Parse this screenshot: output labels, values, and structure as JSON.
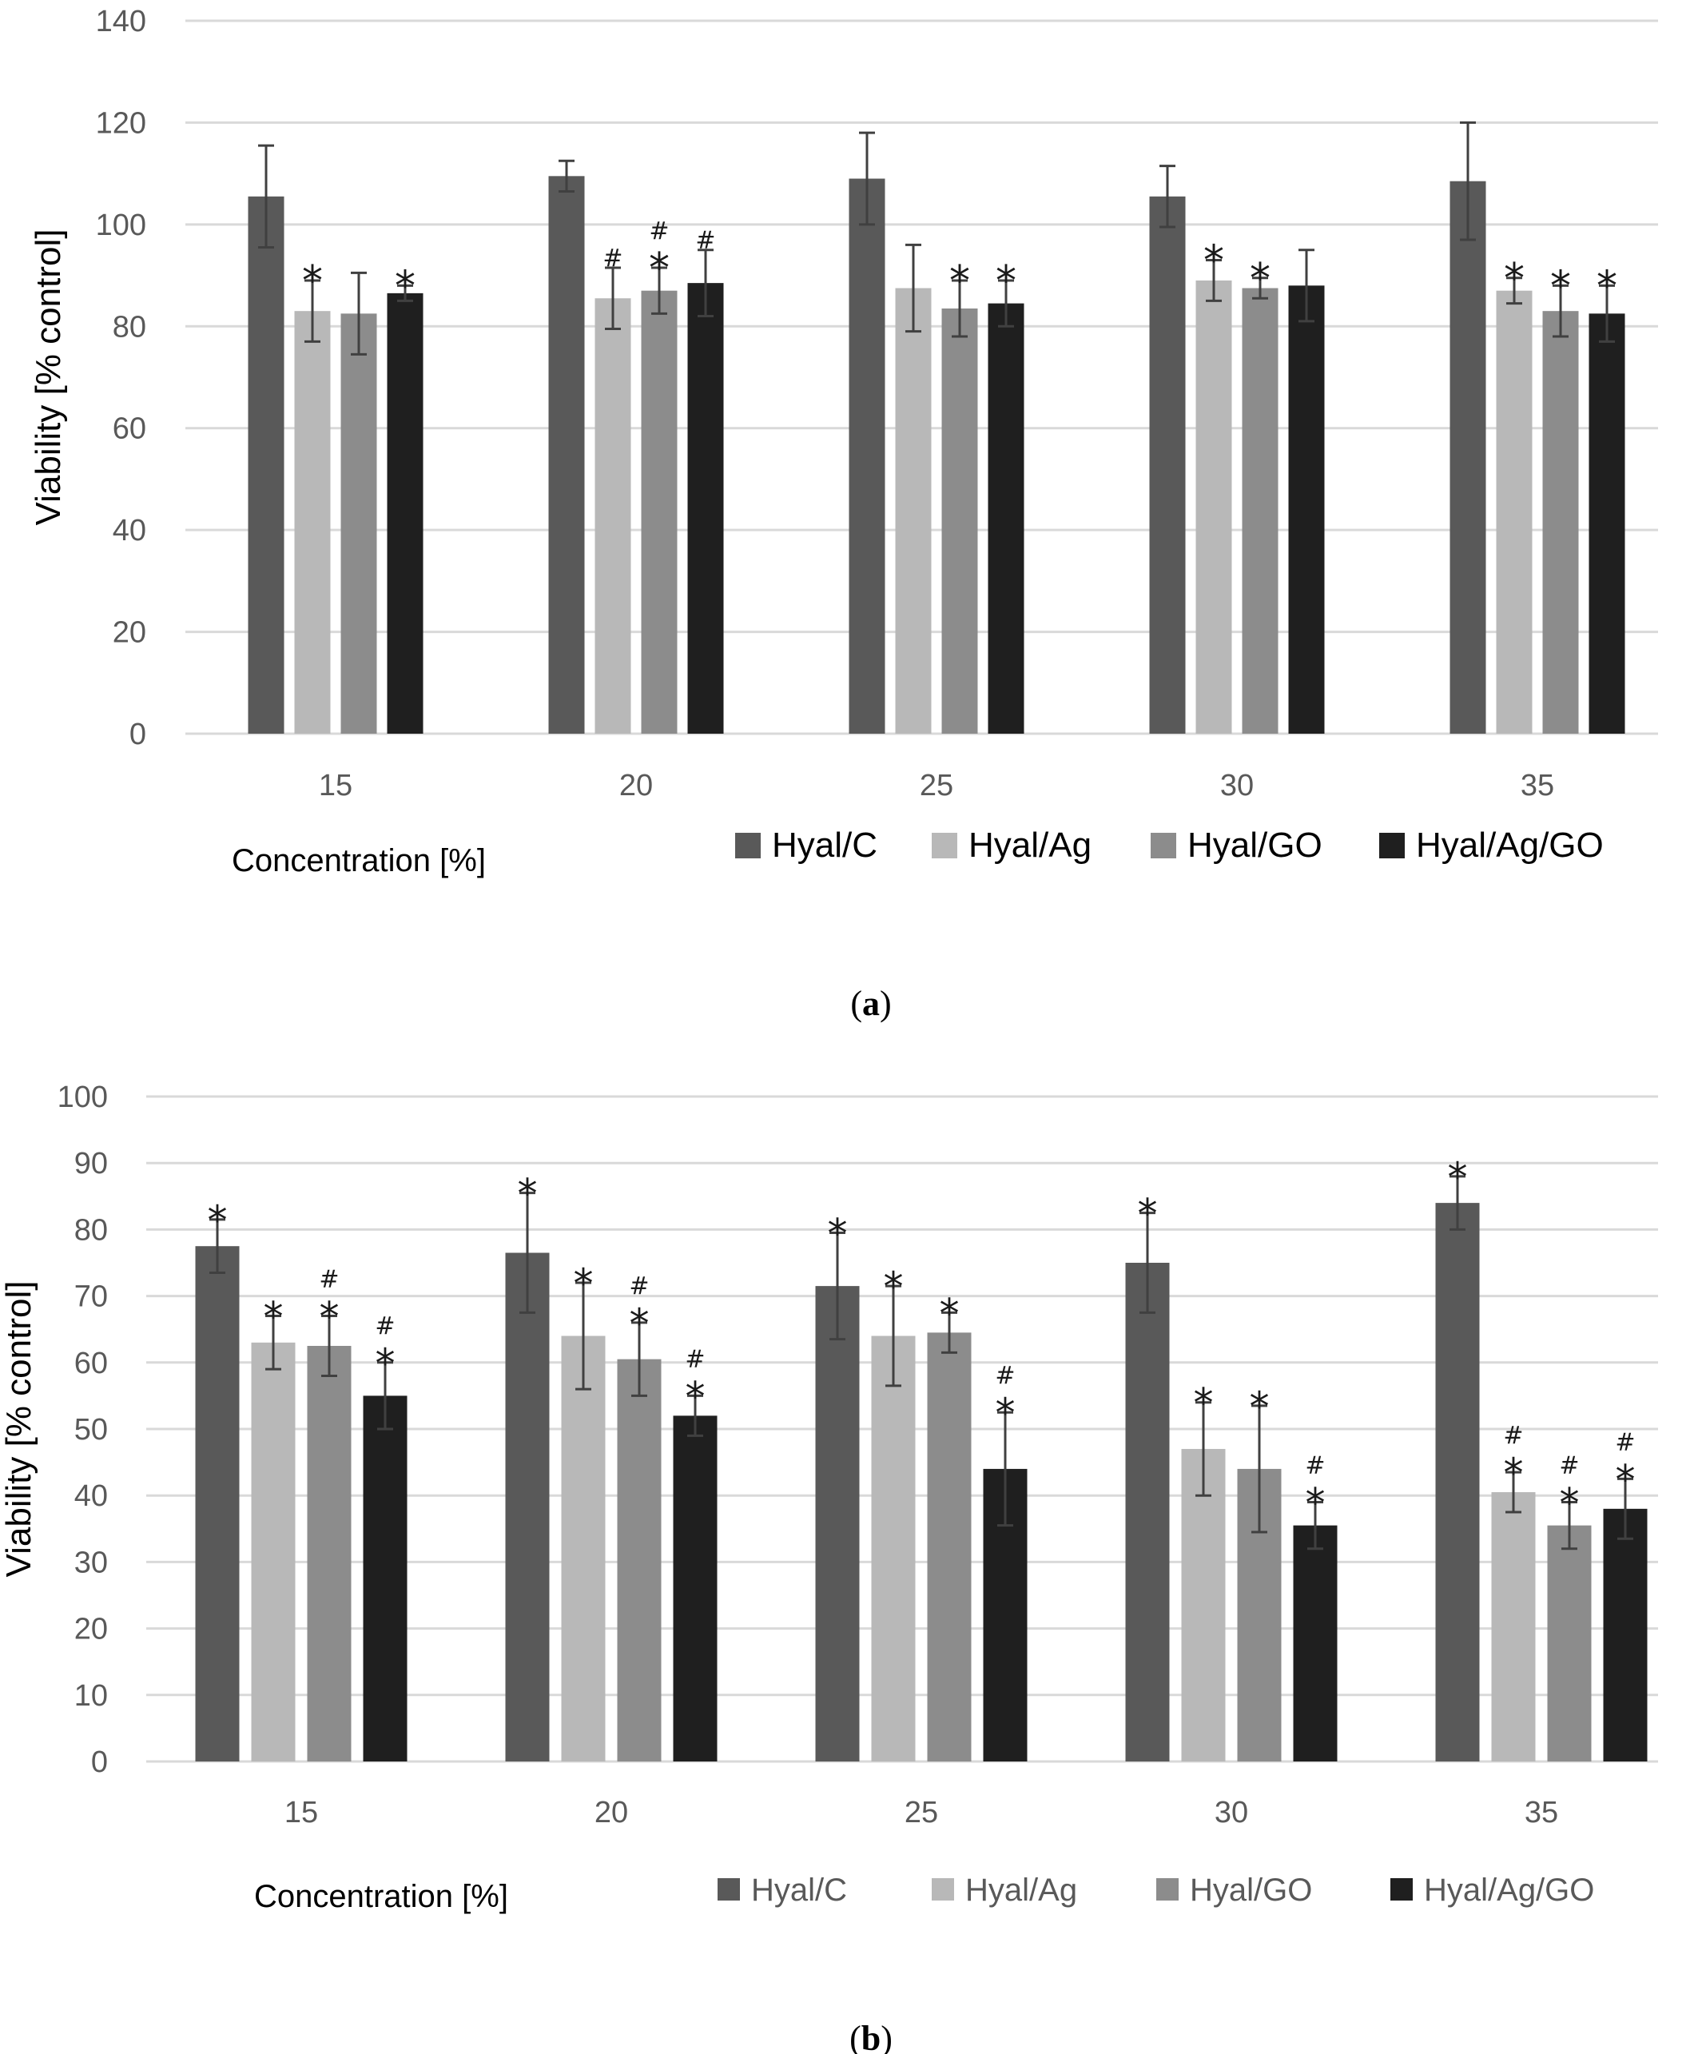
{
  "chart_data": [
    {
      "type": "bar",
      "panel": "a",
      "caption": {
        "open": "(",
        "letter": "a",
        "close": ")"
      },
      "categories": [
        "15",
        "20",
        "25",
        "30",
        "35"
      ],
      "xlabel": "Concentration [%]",
      "ylabel": "Viability [% control]",
      "ylim": [
        0,
        140
      ],
      "yticks": [
        0,
        20,
        40,
        60,
        80,
        100,
        120,
        140
      ],
      "grid": true,
      "legend_position": "bottom-right",
      "series": [
        {
          "name": "Hyal/C",
          "color": "#595959",
          "values": [
            105.5,
            109.5,
            109,
            105.5,
            108.5
          ],
          "errors": [
            10,
            3,
            9,
            6,
            11.5
          ],
          "marks": [
            "",
            "",
            "",
            "",
            ""
          ]
        },
        {
          "name": "Hyal/Ag",
          "color": "#b8b8b8",
          "values": [
            83,
            85.5,
            87.5,
            89,
            87
          ],
          "errors": [
            6,
            6,
            8.5,
            4,
            2.5
          ],
          "marks": [
            "*",
            "#",
            "",
            "*",
            "*"
          ]
        },
        {
          "name": "Hyal/GO",
          "color": "#8c8c8c",
          "values": [
            82.5,
            87,
            83.5,
            87.5,
            83
          ],
          "errors": [
            8,
            4.5,
            5.5,
            2,
            5
          ],
          "marks": [
            "",
            "#*",
            "*",
            "*",
            "*"
          ]
        },
        {
          "name": "Hyal/Ag/GO",
          "color": "#1f1f1f",
          "values": [
            86.5,
            88.5,
            84.5,
            88,
            82.5
          ],
          "errors": [
            1.5,
            6.5,
            4.5,
            7,
            5.5
          ],
          "marks": [
            "*",
            "#",
            "*",
            "",
            "*"
          ]
        }
      ]
    },
    {
      "type": "bar",
      "panel": "b",
      "caption": {
        "open": "(",
        "letter": "b",
        "close": ")"
      },
      "categories": [
        "15",
        "20",
        "25",
        "30",
        "35"
      ],
      "xlabel": "Concentration [%]",
      "ylabel": "Viability [% control]",
      "ylim": [
        0,
        100
      ],
      "yticks": [
        0,
        10,
        20,
        30,
        40,
        50,
        60,
        70,
        80,
        90,
        100
      ],
      "grid": true,
      "legend_position": "bottom-right",
      "series": [
        {
          "name": "Hyal/C",
          "color": "#595959",
          "values": [
            77.5,
            76.5,
            71.5,
            75,
            84
          ],
          "errors": [
            4,
            9,
            8,
            7.5,
            4
          ],
          "marks": [
            "*",
            "*",
            "*",
            "*",
            "*"
          ]
        },
        {
          "name": "Hyal/Ag",
          "color": "#b8b8b8",
          "values": [
            63,
            64,
            64,
            47,
            40.5
          ],
          "errors": [
            4,
            8,
            7.5,
            7,
            3
          ],
          "marks": [
            "*",
            "*",
            "*",
            "*",
            "#*"
          ]
        },
        {
          "name": "Hyal/GO",
          "color": "#8c8c8c",
          "values": [
            62.5,
            60.5,
            64.5,
            44,
            35.5
          ],
          "errors": [
            4.5,
            5.5,
            3,
            9.5,
            3.5
          ],
          "marks": [
            "#*",
            "#*",
            "*",
            "*",
            "#*"
          ]
        },
        {
          "name": "Hyal/Ag/GO",
          "color": "#1f1f1f",
          "values": [
            55,
            52,
            44,
            35.5,
            38
          ],
          "errors": [
            5,
            3,
            8.5,
            3.5,
            4.5
          ],
          "marks": [
            "#*",
            "#*",
            "#*",
            "#*",
            "#*"
          ]
        }
      ]
    }
  ]
}
